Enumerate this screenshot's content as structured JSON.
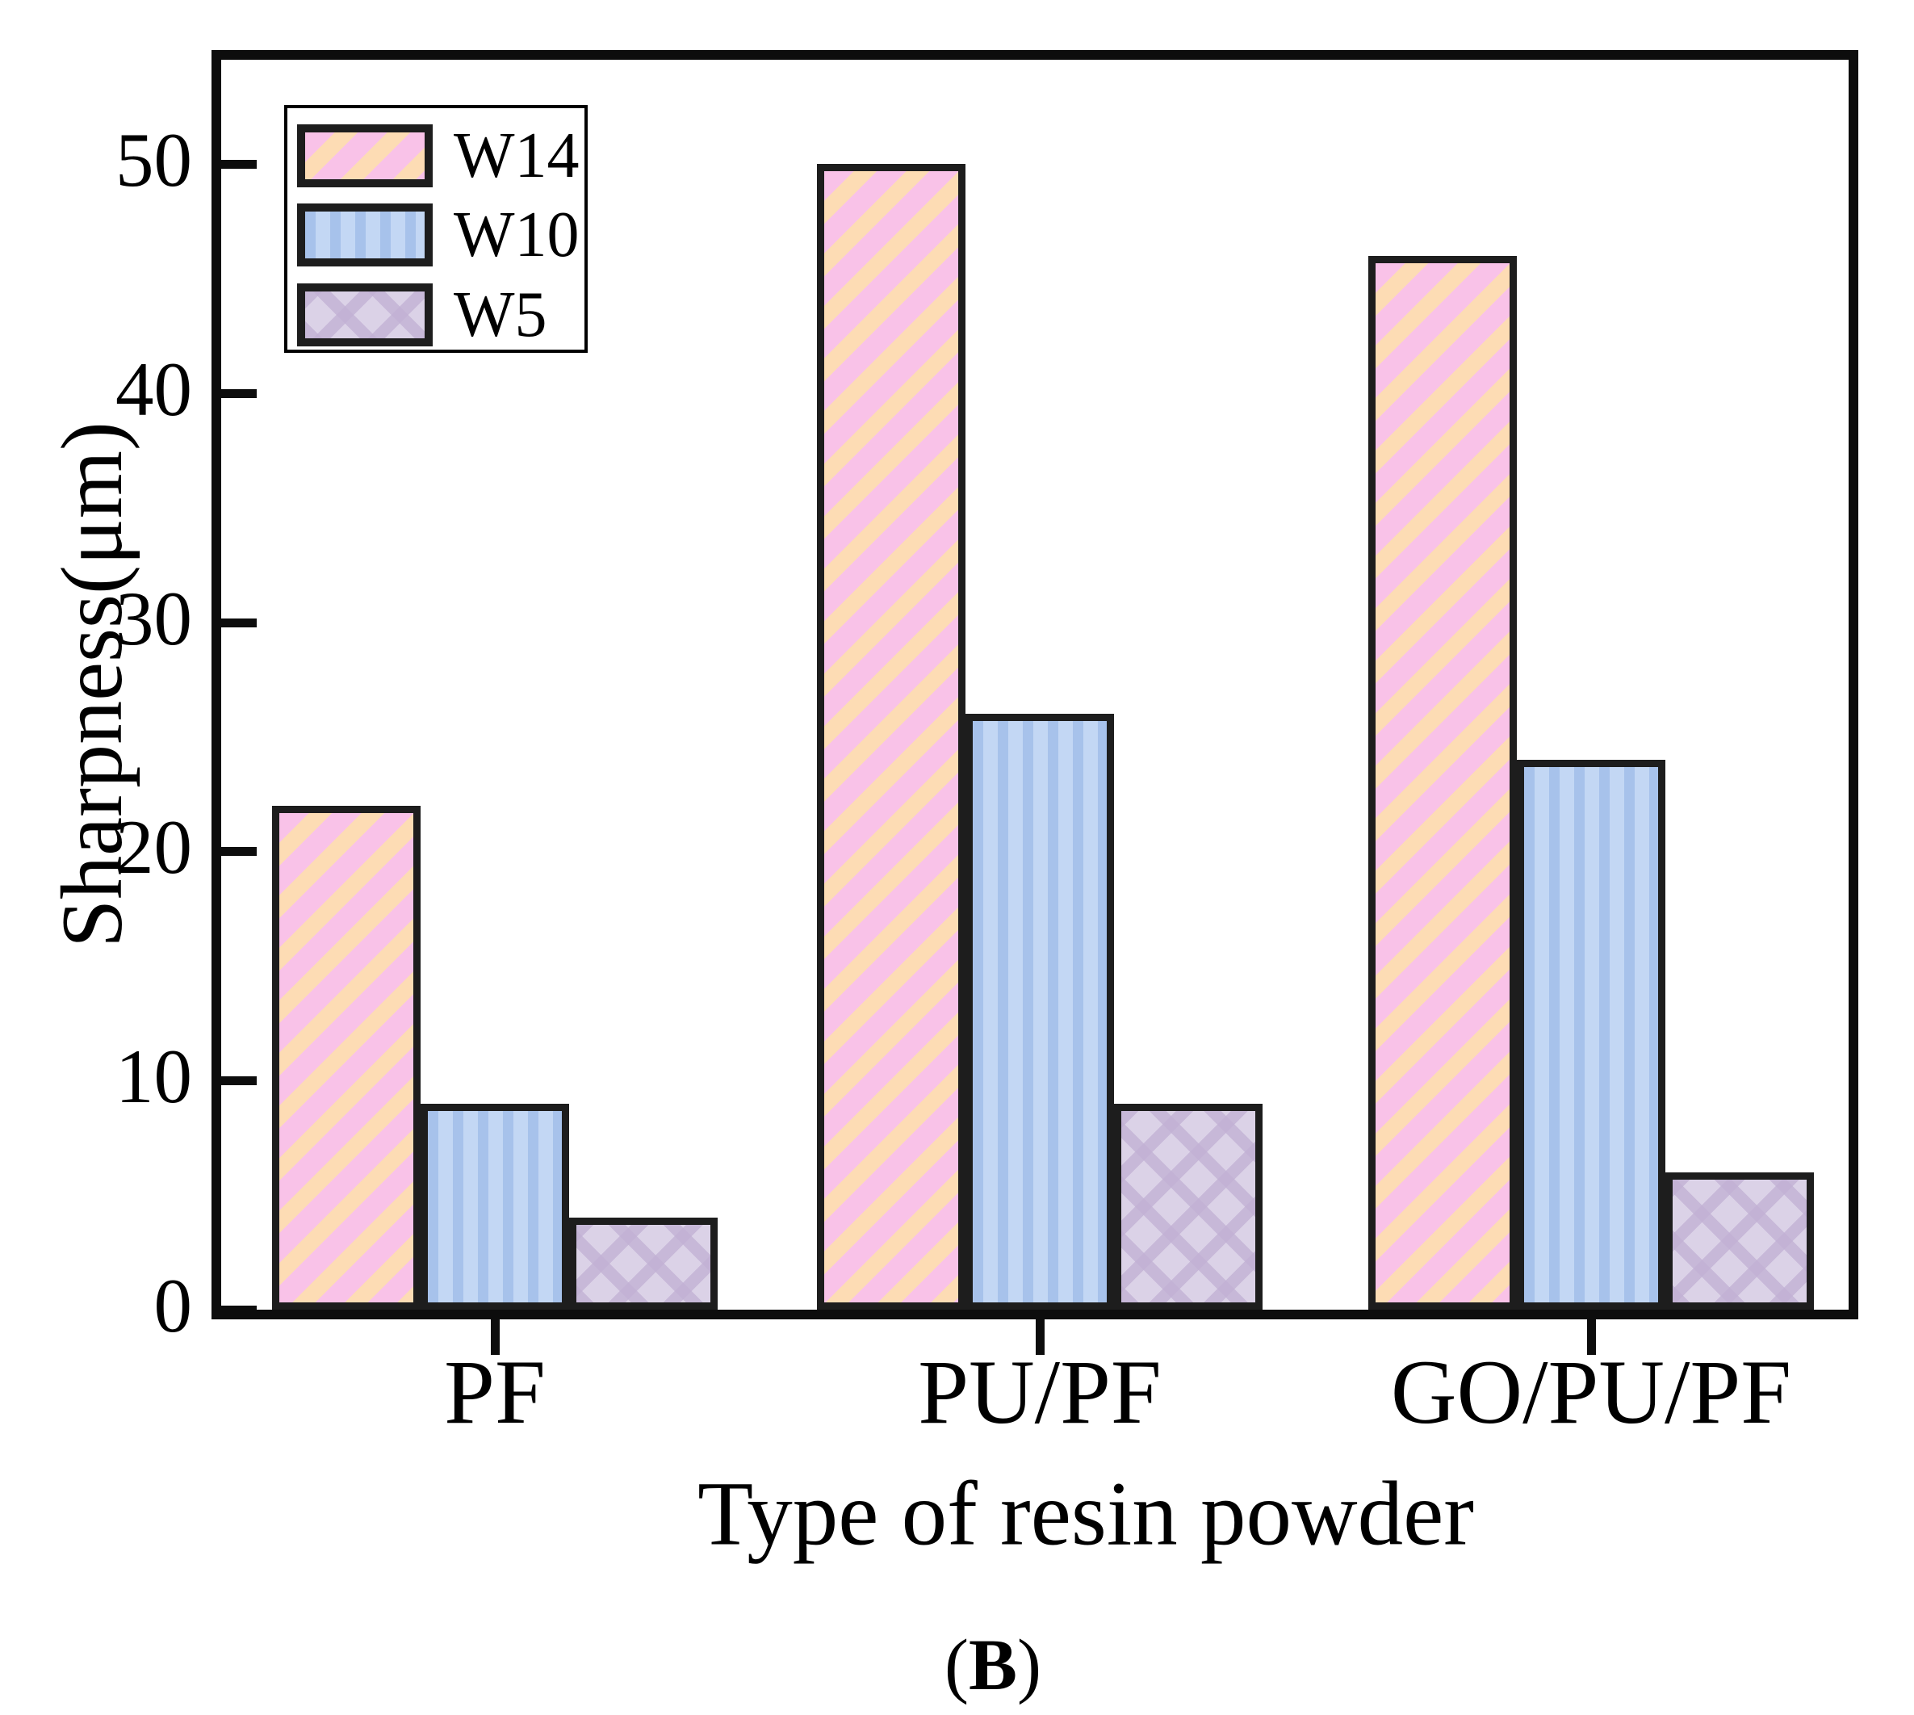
{
  "figure": {
    "caption": {
      "open": "(",
      "letter": "B",
      "close": ")"
    }
  },
  "chart_data": {
    "type": "bar",
    "title": "",
    "xlabel": "Type of resin powder",
    "ylabel": "Sharpness(μm)",
    "categories": [
      "PF",
      "PU/PF",
      "GO/PU/PF"
    ],
    "series": [
      {
        "name": "W14",
        "values": [
          22,
          50,
          46
        ],
        "fill": "#FDDCB4",
        "hatch": "#F9C2E8",
        "pattern": "diagonal"
      },
      {
        "name": "W10",
        "values": [
          9,
          26,
          24
        ],
        "fill": "#C3D7F4",
        "hatch": "#A7C2EB",
        "pattern": "vertical"
      },
      {
        "name": "W5",
        "values": [
          4,
          9,
          6
        ],
        "fill": "#DBD2E7",
        "hatch": "#C2B1D4",
        "pattern": "crosshatch"
      }
    ],
    "yticks": [
      0,
      10,
      20,
      30,
      40,
      50
    ],
    "ylim": [
      0,
      54.5
    ],
    "grid": false,
    "legend_position": "upper-left",
    "colors": {
      "spine": "#0d0d0d",
      "bar_edge": "#1d1d1d",
      "text": "#000000"
    }
  }
}
